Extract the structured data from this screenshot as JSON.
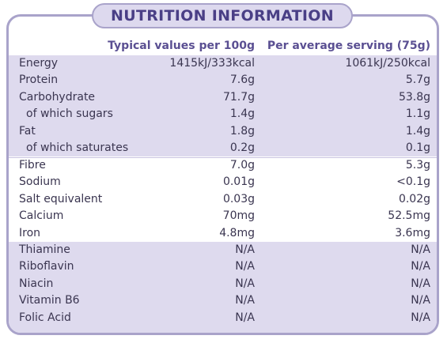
{
  "title": "NUTRITION INFORMATION",
  "headers": {
    "per100": "Typical values per 100g",
    "perServing": "Per average serving (75g)"
  },
  "sections": [
    {
      "rows": [
        {
          "name": "Energy",
          "per100": "1415kJ/333kcal",
          "perServing": "1061kJ/250kcal"
        },
        {
          "name": "Protein",
          "per100": "7.6g",
          "perServing": "5.7g"
        },
        {
          "name": "Carbohydrate",
          "per100": "71.7g",
          "perServing": "53.8g"
        },
        {
          "name": "of which sugars",
          "per100": "1.4g",
          "perServing": "1.1g"
        },
        {
          "name": "Fat",
          "per100": "1.8g",
          "perServing": "1.4g"
        },
        {
          "name": "of which saturates",
          "per100": "0.2g",
          "perServing": "0.1g"
        }
      ]
    },
    {
      "rows": [
        {
          "name": "Fibre",
          "per100": "7.0g",
          "perServing": "5.3g"
        },
        {
          "name": "Sodium",
          "per100": "0.01g",
          "perServing": "<0.1g"
        },
        {
          "name": "Salt equivalent",
          "per100": "0.03g",
          "perServing": "0.02g"
        },
        {
          "name": "Calcium",
          "per100": "70mg",
          "perServing": "52.5mg"
        },
        {
          "name": "Iron",
          "per100": "4.8mg",
          "perServing": "3.6mg"
        }
      ]
    },
    {
      "rows": [
        {
          "name": "Thiamine",
          "per100": "N/A",
          "perServing": "N/A"
        },
        {
          "name": "Riboflavin",
          "per100": "N/A",
          "perServing": "N/A"
        },
        {
          "name": "Niacin",
          "per100": "N/A",
          "perServing": "N/A"
        },
        {
          "name": "Vitamin B6",
          "per100": "N/A",
          "perServing": "N/A"
        },
        {
          "name": "Folic Acid",
          "per100": "N/A",
          "perServing": "N/A"
        }
      ]
    }
  ],
  "colors": {
    "border": "#a9a3ca",
    "shade": "#dedaee",
    "title": "#4a3f86",
    "header": "#5a4f92",
    "text": "#3a3550"
  }
}
